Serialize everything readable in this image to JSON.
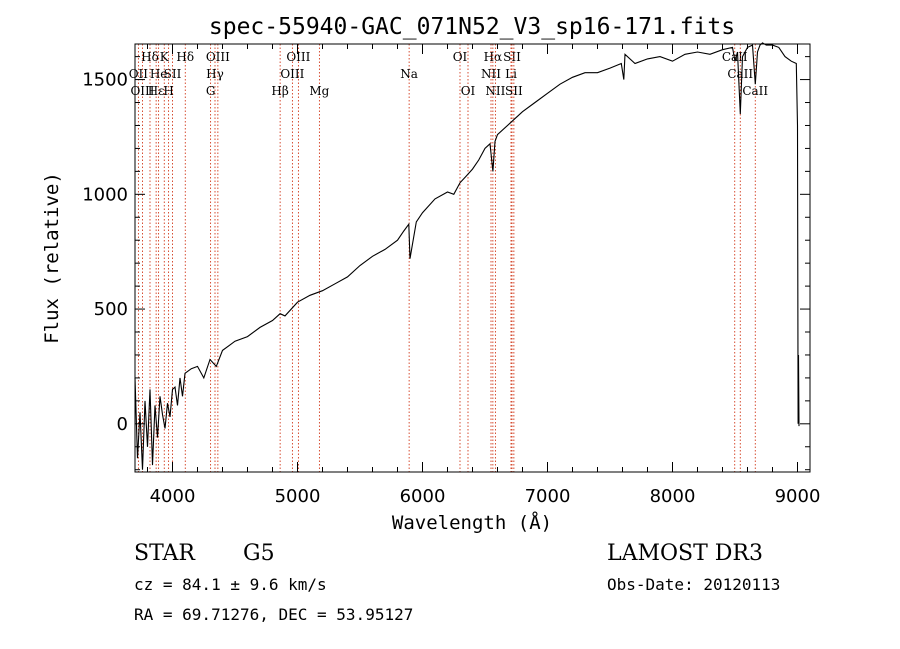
{
  "chart_data": {
    "type": "line",
    "title": "spec-55940-GAC_071N52_V3_sp16-171.fits",
    "xlabel": "Wavelength (Å)",
    "ylabel": "Flux (relative)",
    "xlim": [
      3700,
      9100
    ],
    "ylim": [
      -210,
      1655
    ],
    "xticks": [
      4000,
      5000,
      6000,
      7000,
      8000,
      9000
    ],
    "yticks": [
      0,
      500,
      1000,
      1500
    ],
    "series": [
      {
        "name": "spectrum",
        "x": [
          3700,
          3720,
          3740,
          3760,
          3780,
          3800,
          3820,
          3840,
          3860,
          3880,
          3900,
          3920,
          3940,
          3960,
          3980,
          4000,
          4020,
          4040,
          4060,
          4080,
          4100,
          4150,
          4200,
          4250,
          4300,
          4350,
          4400,
          4450,
          4500,
          4600,
          4700,
          4800,
          4861,
          4900,
          5000,
          5100,
          5200,
          5300,
          5400,
          5500,
          5600,
          5700,
          5800,
          5850,
          5890,
          5900,
          5950,
          6000,
          6100,
          6200,
          6250,
          6300,
          6350,
          6400,
          6450,
          6500,
          6540,
          6563,
          6580,
          6600,
          6700,
          6800,
          6900,
          7000,
          7100,
          7200,
          7300,
          7400,
          7500,
          7590,
          7610,
          7620,
          7700,
          7800,
          7900,
          8000,
          8100,
          8200,
          8300,
          8400,
          8480,
          8500,
          8520,
          8542,
          8560,
          8600,
          8640,
          8662,
          8680,
          8700,
          8720,
          8750,
          8800,
          8850,
          8900,
          8950,
          8990,
          9000,
          9005,
          9008,
          9012
        ],
        "values": [
          200,
          -150,
          50,
          -200,
          100,
          -100,
          150,
          -180,
          80,
          -60,
          120,
          40,
          -20,
          90,
          30,
          150,
          160,
          80,
          200,
          120,
          220,
          240,
          250,
          200,
          280,
          250,
          320,
          340,
          360,
          380,
          420,
          450,
          480,
          470,
          530,
          560,
          580,
          610,
          640,
          690,
          730,
          760,
          800,
          840,
          870,
          720,
          880,
          920,
          980,
          1010,
          1000,
          1050,
          1080,
          1110,
          1150,
          1200,
          1220,
          1100,
          1230,
          1260,
          1310,
          1360,
          1400,
          1440,
          1480,
          1510,
          1530,
          1530,
          1550,
          1570,
          1500,
          1610,
          1570,
          1590,
          1600,
          1580,
          1610,
          1620,
          1610,
          1630,
          1640,
          1580,
          1620,
          1350,
          1600,
          1640,
          1650,
          1480,
          1620,
          1650,
          1660,
          1650,
          1650,
          1640,
          1600,
          1580,
          1570,
          1300,
          0,
          300,
          -10
        ]
      }
    ],
    "lines": [
      {
        "name": "Hδ",
        "wl": 3820,
        "row": 0
      },
      {
        "name": "OII",
        "wl": 3727,
        "row": 1
      },
      {
        "name": "OIII",
        "wl": 3760,
        "row": 2
      },
      {
        "name": "He",
        "wl": 3889,
        "row": 1
      },
      {
        "name": "Hε",
        "wl": 3869,
        "row": 2
      },
      {
        "name": "K",
        "wl": 3934,
        "row": 0
      },
      {
        "name": "SII",
        "wl": 4000,
        "row": 1
      },
      {
        "name": "H",
        "wl": 3969,
        "row": 2
      },
      {
        "name": "Hδ",
        "wl": 4102,
        "row": 0
      },
      {
        "name": "OIII",
        "wl": 4363,
        "row": 0
      },
      {
        "name": "Hγ",
        "wl": 4340,
        "row": 1
      },
      {
        "name": "G",
        "wl": 4305,
        "row": 2
      },
      {
        "name": "OIII",
        "wl": 5007,
        "row": 0
      },
      {
        "name": "OIII",
        "wl": 4959,
        "row": 1
      },
      {
        "name": "Hβ",
        "wl": 4861,
        "row": 2
      },
      {
        "name": "Mg",
        "wl": 5175,
        "row": 2
      },
      {
        "name": "Na",
        "wl": 5893,
        "row": 1
      },
      {
        "name": "OI",
        "wl": 6300,
        "row": 0
      },
      {
        "name": "OI",
        "wl": 6364,
        "row": 2
      },
      {
        "name": "Hα",
        "wl": 6563,
        "row": 0
      },
      {
        "name": "NII",
        "wl": 6548,
        "row": 1
      },
      {
        "name": "NII",
        "wl": 6583,
        "row": 2
      },
      {
        "name": "SII",
        "wl": 6716,
        "row": 0
      },
      {
        "name": "Li",
        "wl": 6708,
        "row": 1
      },
      {
        "name": "SII",
        "wl": 6731,
        "row": 2
      },
      {
        "name": "CaII",
        "wl": 8498,
        "row": 0
      },
      {
        "name": "CaII",
        "wl": 8542,
        "row": 1
      },
      {
        "name": "CaII",
        "wl": 8662,
        "row": 2
      }
    ]
  },
  "info": {
    "object_class": "STAR",
    "subclass": "G5",
    "survey": "LAMOST DR3",
    "cz": "cz = 84.1 ± 9.6 km/s",
    "obs_date": "Obs-Date: 20120113",
    "radec": "RA =  69.71276, DEC =  53.95127"
  },
  "colors": {
    "lines": "#cc2200",
    "ink": "#000000"
  }
}
